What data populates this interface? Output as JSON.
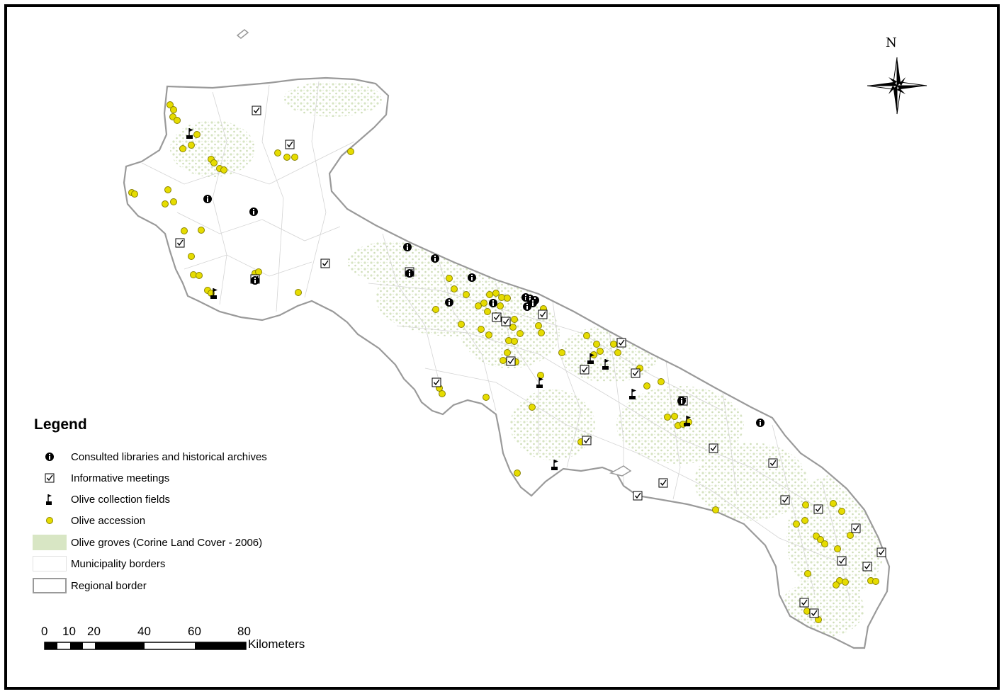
{
  "legend": {
    "title": "Legend",
    "items": [
      {
        "label": "Consulted libraries and historical archives",
        "icon": "info-icon"
      },
      {
        "label": "Informative meetings",
        "icon": "checkbox-icon"
      },
      {
        "label": "Olive collection fields",
        "icon": "flag-icon"
      },
      {
        "label": "Olive accession",
        "icon": "yellow-dot-icon"
      },
      {
        "label": "Olive groves (Corine Land Cover - 2006)",
        "icon": "green-fill-swatch"
      },
      {
        "label": "Municipality borders",
        "icon": "white-fill-swatch"
      },
      {
        "label": "Regional border",
        "icon": "gray-outline-swatch"
      }
    ]
  },
  "scale_bar": {
    "ticks": [
      "0",
      "10",
      "20",
      "40",
      "60",
      "80"
    ],
    "unit": "Kilometers"
  },
  "north_arrow": {
    "label": "N"
  },
  "colors": {
    "olive_accession": "#e6dc00",
    "olive_accession_stroke": "#8a8400",
    "olive_groves": "#d8e6c4",
    "region_border": "#9a9a9a",
    "symbol": "#000000"
  }
}
